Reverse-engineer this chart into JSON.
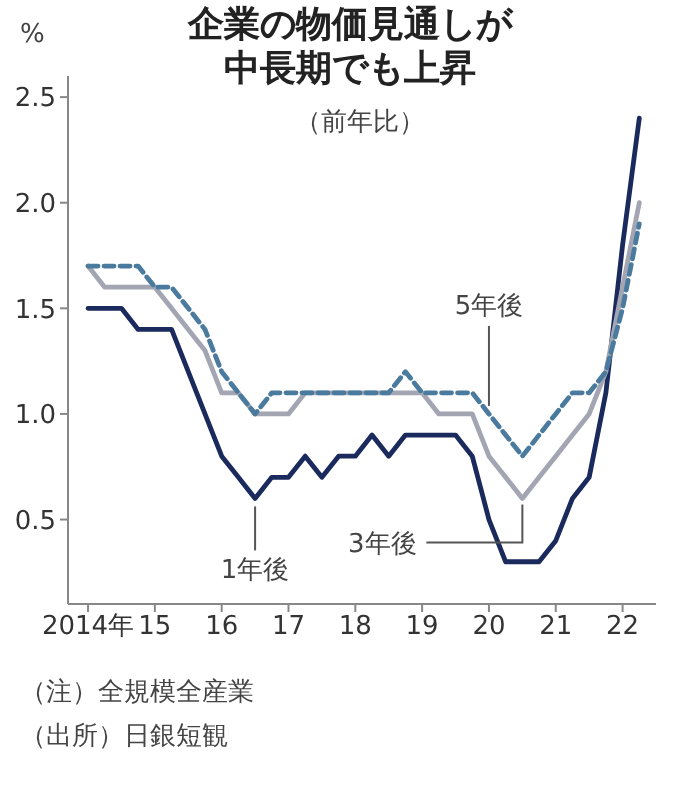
{
  "chart_data": {
    "type": "line",
    "title": "企業の物価見通しが中長期でも上昇",
    "subtitle": "（前年比）",
    "ylabel": "%",
    "x": [
      2014,
      2014.25,
      2014.5,
      2014.75,
      2015,
      2015.25,
      2015.5,
      2015.75,
      2016,
      2016.25,
      2016.5,
      2016.75,
      2017,
      2017.25,
      2017.5,
      2017.75,
      2018,
      2018.25,
      2018.5,
      2018.75,
      2019,
      2019.25,
      2019.5,
      2019.75,
      2020,
      2020.25,
      2020.5,
      2020.75,
      2021,
      2021.25,
      2021.5,
      2021.75,
      2022,
      2022.25
    ],
    "series": [
      {
        "name": "1年後",
        "color": "#1a2a5c",
        "line_style": "solid",
        "values": [
          1.5,
          1.5,
          1.5,
          1.4,
          1.4,
          1.4,
          1.2,
          1.0,
          0.8,
          0.7,
          0.6,
          0.7,
          0.7,
          0.8,
          0.7,
          0.8,
          0.8,
          0.9,
          0.8,
          0.9,
          0.9,
          0.9,
          0.9,
          0.8,
          0.5,
          0.3,
          0.3,
          0.3,
          0.4,
          0.6,
          0.7,
          1.1,
          1.8,
          2.4
        ]
      },
      {
        "name": "3年後",
        "color": "#a3a6b2",
        "line_style": "solid",
        "values": [
          1.7,
          1.6,
          1.6,
          1.6,
          1.6,
          1.5,
          1.4,
          1.3,
          1.1,
          1.1,
          1.0,
          1.0,
          1.0,
          1.1,
          1.1,
          1.1,
          1.1,
          1.1,
          1.1,
          1.1,
          1.1,
          1.0,
          1.0,
          1.0,
          0.8,
          0.7,
          0.6,
          0.7,
          0.8,
          0.9,
          1.0,
          1.2,
          1.6,
          2.0
        ]
      },
      {
        "name": "5年後",
        "color": "#4a7a9e",
        "line_style": "dashed",
        "values": [
          1.7,
          1.7,
          1.7,
          1.7,
          1.6,
          1.6,
          1.5,
          1.4,
          1.2,
          1.1,
          1.0,
          1.1,
          1.1,
          1.1,
          1.1,
          1.1,
          1.1,
          1.1,
          1.1,
          1.2,
          1.1,
          1.1,
          1.1,
          1.1,
          1.0,
          0.9,
          0.8,
          0.9,
          1.0,
          1.1,
          1.1,
          1.2,
          1.5,
          1.9
        ]
      }
    ],
    "xlim": [
      2013.7,
      2022.5
    ],
    "xticks": [
      {
        "value": 2014,
        "label": "2014年"
      },
      {
        "value": 2015,
        "label": "15"
      },
      {
        "value": 2016,
        "label": "16"
      },
      {
        "value": 2017,
        "label": "17"
      },
      {
        "value": 2018,
        "label": "18"
      },
      {
        "value": 2019,
        "label": "19"
      },
      {
        "value": 2020,
        "label": "20"
      },
      {
        "value": 2021,
        "label": "21"
      },
      {
        "value": 2022,
        "label": "22"
      }
    ],
    "ylim": [
      0.1,
      2.6
    ],
    "yticks": [
      {
        "value": 0.5,
        "label": "0.5"
      },
      {
        "value": 1,
        "label": "1.0"
      },
      {
        "value": 1.5,
        "label": "1.5"
      },
      {
        "value": 2,
        "label": "2.0"
      },
      {
        "value": 2.5,
        "label": "2.5"
      }
    ],
    "grid": false,
    "marker": "none",
    "annotations": [
      "（注）全規模全産業",
      "（出所）日銀短観"
    ]
  }
}
